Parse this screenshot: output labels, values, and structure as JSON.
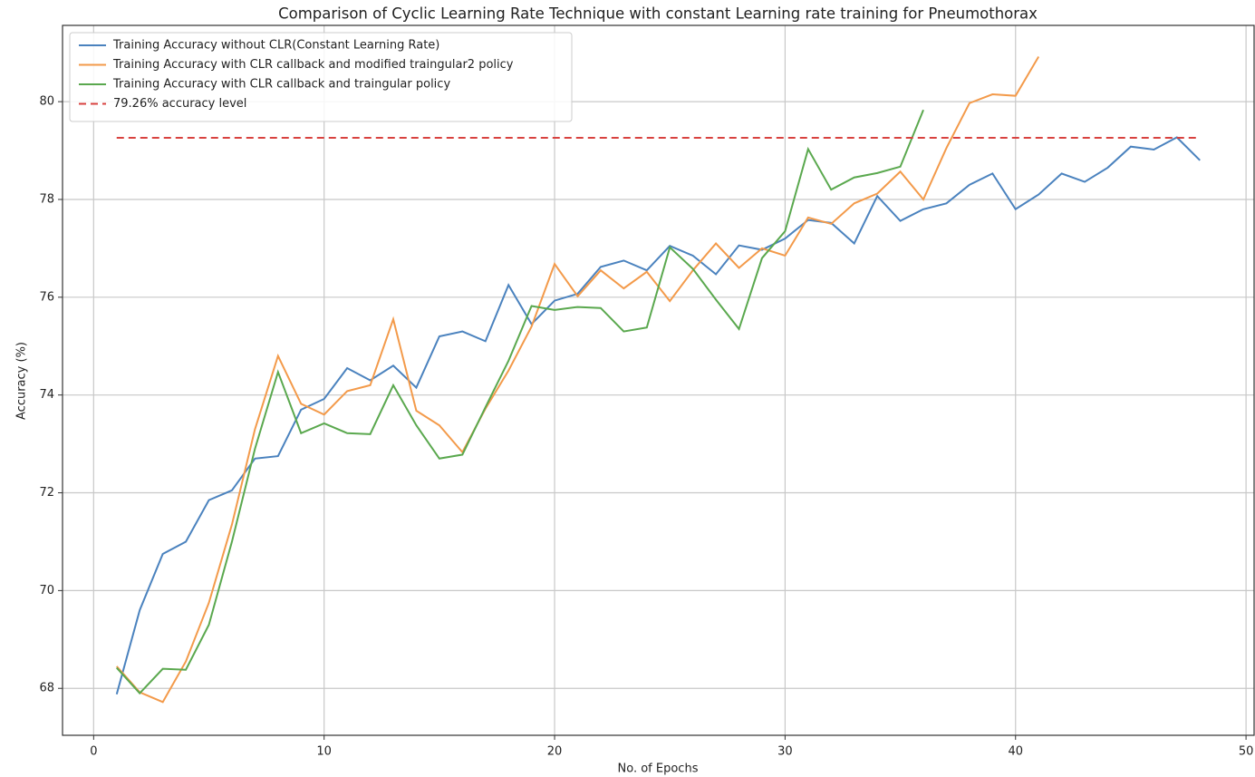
{
  "chart_data": {
    "type": "line",
    "title": "Comparison of Cyclic Learning Rate Technique with constant Learning rate training for Pneumothorax",
    "xlabel": "No. of Epochs",
    "ylabel": "Accuracy (%)",
    "xlim": [
      -1.35,
      50.35
    ],
    "xticks": [
      0,
      10,
      20,
      30,
      40,
      50
    ],
    "ylim": [
      67.04,
      81.56
    ],
    "yticks": [
      68,
      70,
      72,
      74,
      76,
      78,
      80
    ],
    "grid": true,
    "legend": "upper left",
    "series": [
      {
        "name": "Training Accuracy without CLR(Constant Learning Rate)",
        "color": "#4a82be",
        "linestyle": "solid",
        "x": [
          1,
          2,
          3,
          4,
          5,
          6,
          7,
          8,
          9,
          10,
          11,
          12,
          13,
          14,
          15,
          16,
          17,
          18,
          19,
          20,
          21,
          22,
          23,
          24,
          25,
          26,
          27,
          28,
          29,
          30,
          31,
          32,
          33,
          34,
          35,
          36,
          37,
          38,
          39,
          40,
          41,
          42,
          43,
          44,
          45,
          46,
          47,
          48
        ],
        "values": [
          67.88,
          69.6,
          70.75,
          71.0,
          71.85,
          72.05,
          72.7,
          72.75,
          73.7,
          73.92,
          74.55,
          74.3,
          74.6,
          74.15,
          75.2,
          75.3,
          75.1,
          76.25,
          75.45,
          75.93,
          76.07,
          76.62,
          76.75,
          76.55,
          77.05,
          76.85,
          76.47,
          77.06,
          76.97,
          77.2,
          77.58,
          77.52,
          77.1,
          78.07,
          77.56,
          77.8,
          77.92,
          78.3,
          78.53,
          77.8,
          78.1,
          78.53,
          78.36,
          78.65,
          79.08,
          79.02,
          79.27,
          78.8
        ]
      },
      {
        "name": "Training Accuracy with CLR callback and modified traingular2 policy",
        "color": "#f39a4a",
        "linestyle": "solid",
        "x": [
          1,
          2,
          3,
          4,
          5,
          6,
          7,
          8,
          9,
          10,
          11,
          12,
          13,
          14,
          15,
          16,
          17,
          18,
          19,
          20,
          21,
          22,
          23,
          24,
          25,
          26,
          27,
          28,
          29,
          30,
          31,
          32,
          33,
          34,
          35,
          36,
          37,
          38,
          39,
          40,
          41
        ],
        "values": [
          68.45,
          67.92,
          67.72,
          68.55,
          69.75,
          71.35,
          73.3,
          74.8,
          73.82,
          73.6,
          74.08,
          74.2,
          75.55,
          73.68,
          73.38,
          72.83,
          73.72,
          74.5,
          75.4,
          76.68,
          76.02,
          76.55,
          76.18,
          76.52,
          75.92,
          76.55,
          77.1,
          76.6,
          77.0,
          76.85,
          77.63,
          77.5,
          77.92,
          78.12,
          78.57,
          78.0,
          79.05,
          79.97,
          80.15,
          80.12,
          80.92
        ]
      },
      {
        "name": "Training Accuracy with CLR callback and traingular policy",
        "color": "#5aa84e",
        "linestyle": "solid",
        "x": [
          1,
          2,
          3,
          4,
          5,
          6,
          7,
          8,
          9,
          10,
          11,
          12,
          13,
          14,
          15,
          16,
          17,
          18,
          19,
          20,
          21,
          22,
          23,
          24,
          25,
          26,
          27,
          28,
          29,
          30,
          31,
          32,
          33,
          34,
          35,
          36
        ],
        "values": [
          68.42,
          67.9,
          68.4,
          68.38,
          69.3,
          71.0,
          72.9,
          74.47,
          73.22,
          73.42,
          73.22,
          73.2,
          74.2,
          73.38,
          72.7,
          72.78,
          73.75,
          74.7,
          75.82,
          75.74,
          75.8,
          75.78,
          75.3,
          75.38,
          77.02,
          76.58,
          75.95,
          75.35,
          76.8,
          77.35,
          79.03,
          78.2,
          78.45,
          78.54,
          78.67,
          79.83
        ]
      },
      {
        "name": "79.26% accuracy level",
        "color": "#d8423f",
        "linestyle": "dashed",
        "x": [
          1,
          48
        ],
        "values": [
          79.26,
          79.26
        ]
      }
    ]
  }
}
